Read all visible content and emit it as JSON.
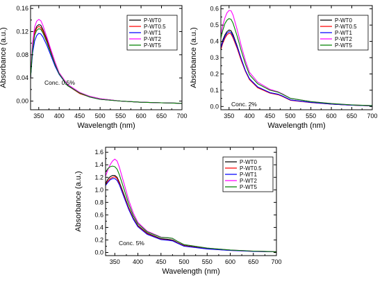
{
  "chart_data": [
    {
      "type": "line",
      "title": "",
      "xlabel": "Wavelength (nm)",
      "ylabel": "Absorbance (a.u.)",
      "xlim": [
        330,
        700
      ],
      "ylim": [
        -0.015,
        0.165
      ],
      "xticks": [
        350,
        400,
        450,
        500,
        550,
        600,
        650,
        700
      ],
      "yticks": [
        0.0,
        0.04,
        0.08,
        0.12,
        0.16
      ],
      "yticklabels": [
        "0.00",
        "0.04",
        "0.08",
        "0.12",
        "0.16"
      ],
      "annotation": "Conc. 0.5%",
      "legend_position": "top-right",
      "grid": false,
      "series": [
        {
          "name": "P-WT0",
          "color": "#000000",
          "x": [
            330,
            335,
            340,
            345,
            350,
            355,
            360,
            370,
            380,
            390,
            400,
            420,
            450,
            475,
            500,
            550,
            600,
            650,
            700
          ],
          "y": [
            0.04,
            0.095,
            0.12,
            0.129,
            0.132,
            0.131,
            0.124,
            0.106,
            0.085,
            0.065,
            0.048,
            0.028,
            0.014,
            0.008,
            0.004,
            0.0,
            -0.002,
            -0.003,
            -0.004
          ]
        },
        {
          "name": "P-WT0.5",
          "color": "#ff0000",
          "x": [
            330,
            335,
            340,
            345,
            350,
            355,
            360,
            370,
            380,
            390,
            400,
            420,
            450,
            475,
            500,
            550,
            600,
            650,
            700
          ],
          "y": [
            0.04,
            0.093,
            0.118,
            0.126,
            0.129,
            0.127,
            0.121,
            0.103,
            0.083,
            0.064,
            0.047,
            0.027,
            0.013,
            0.007,
            0.003,
            0.0,
            -0.002,
            -0.003,
            -0.004
          ]
        },
        {
          "name": "P-WT1",
          "color": "#0000ff",
          "x": [
            330,
            335,
            340,
            345,
            350,
            355,
            360,
            370,
            380,
            390,
            400,
            420,
            450,
            475,
            500,
            550,
            600,
            650,
            700
          ],
          "y": [
            0.04,
            0.083,
            0.104,
            0.113,
            0.117,
            0.116,
            0.111,
            0.096,
            0.078,
            0.06,
            0.046,
            0.027,
            0.014,
            0.007,
            0.003,
            0.0,
            -0.002,
            -0.003,
            -0.004
          ]
        },
        {
          "name": "P-WT2",
          "color": "#ff00ff",
          "x": [
            330,
            335,
            340,
            345,
            350,
            355,
            360,
            370,
            380,
            390,
            400,
            420,
            450,
            475,
            500,
            550,
            600,
            650,
            700
          ],
          "y": [
            0.042,
            0.1,
            0.128,
            0.138,
            0.141,
            0.139,
            0.131,
            0.11,
            0.088,
            0.067,
            0.049,
            0.029,
            0.015,
            0.008,
            0.004,
            0.0,
            -0.002,
            -0.003,
            -0.004
          ]
        },
        {
          "name": "P-WT5",
          "color": "#008000",
          "x": [
            330,
            335,
            340,
            345,
            350,
            355,
            360,
            370,
            380,
            390,
            400,
            420,
            450,
            475,
            500,
            550,
            600,
            650,
            700
          ],
          "y": [
            0.04,
            0.09,
            0.114,
            0.122,
            0.125,
            0.124,
            0.118,
            0.101,
            0.082,
            0.063,
            0.047,
            0.027,
            0.014,
            0.007,
            0.003,
            0.0,
            -0.002,
            -0.003,
            -0.004
          ]
        }
      ]
    },
    {
      "type": "line",
      "title": "",
      "xlabel": "Wavelength (nm)",
      "ylabel": "Absorbance (a.u.)",
      "xlim": [
        330,
        700
      ],
      "ylim": [
        -0.02,
        0.62
      ],
      "xticks": [
        350,
        400,
        450,
        500,
        550,
        600,
        650,
        700
      ],
      "yticks": [
        0.0,
        0.1,
        0.2,
        0.3,
        0.4,
        0.5,
        0.6
      ],
      "yticklabels": [
        "0.0",
        "0.1",
        "0.2",
        "0.3",
        "0.4",
        "0.5",
        "0.6"
      ],
      "annotation": "Conc. 2%",
      "legend_position": "top-right",
      "grid": false,
      "series": [
        {
          "name": "P-WT0",
          "color": "#000000",
          "x": [
            330,
            335,
            340,
            345,
            350,
            355,
            360,
            370,
            380,
            390,
            400,
            420,
            450,
            470,
            480,
            500,
            550,
            600,
            650,
            700
          ],
          "y": [
            0.36,
            0.41,
            0.44,
            0.46,
            0.47,
            0.465,
            0.44,
            0.37,
            0.29,
            0.22,
            0.17,
            0.12,
            0.085,
            0.075,
            0.065,
            0.04,
            0.025,
            0.015,
            0.008,
            0.004
          ]
        },
        {
          "name": "P-WT0.5",
          "color": "#ff0000",
          "x": [
            330,
            335,
            340,
            345,
            350,
            355,
            360,
            370,
            380,
            390,
            400,
            420,
            450,
            470,
            480,
            500,
            550,
            600,
            650,
            700
          ],
          "y": [
            0.35,
            0.39,
            0.42,
            0.44,
            0.45,
            0.445,
            0.42,
            0.355,
            0.28,
            0.215,
            0.165,
            0.115,
            0.082,
            0.072,
            0.062,
            0.038,
            0.024,
            0.014,
            0.008,
            0.004
          ]
        },
        {
          "name": "P-WT1",
          "color": "#0000ff",
          "x": [
            330,
            335,
            340,
            345,
            350,
            355,
            360,
            370,
            380,
            390,
            400,
            420,
            450,
            470,
            480,
            500,
            550,
            600,
            650,
            700
          ],
          "y": [
            0.36,
            0.4,
            0.43,
            0.45,
            0.46,
            0.455,
            0.43,
            0.365,
            0.29,
            0.22,
            0.17,
            0.12,
            0.085,
            0.075,
            0.065,
            0.04,
            0.025,
            0.015,
            0.008,
            0.004
          ]
        },
        {
          "name": "P-WT2",
          "color": "#ff00ff",
          "x": [
            330,
            335,
            340,
            345,
            350,
            355,
            360,
            370,
            380,
            390,
            400,
            420,
            450,
            470,
            480,
            500,
            550,
            600,
            650,
            700
          ],
          "y": [
            0.44,
            0.5,
            0.545,
            0.575,
            0.59,
            0.588,
            0.56,
            0.47,
            0.37,
            0.28,
            0.21,
            0.15,
            0.105,
            0.09,
            0.078,
            0.05,
            0.03,
            0.018,
            0.01,
            0.005
          ]
        },
        {
          "name": "P-WT5",
          "color": "#008000",
          "x": [
            330,
            335,
            340,
            345,
            350,
            355,
            360,
            370,
            380,
            390,
            400,
            420,
            450,
            470,
            480,
            500,
            550,
            600,
            650,
            700
          ],
          "y": [
            0.42,
            0.47,
            0.51,
            0.53,
            0.54,
            0.535,
            0.51,
            0.43,
            0.34,
            0.26,
            0.195,
            0.14,
            0.1,
            0.088,
            0.076,
            0.05,
            0.03,
            0.018,
            0.01,
            0.005
          ]
        }
      ]
    },
    {
      "type": "line",
      "title": "",
      "xlabel": "Wavelength (nm)",
      "ylabel": "Absorbance (a.u.)",
      "xlim": [
        330,
        700
      ],
      "ylim": [
        -0.05,
        1.68
      ],
      "xticks": [
        350,
        400,
        450,
        500,
        550,
        600,
        650,
        700
      ],
      "yticks": [
        0.0,
        0.2,
        0.4,
        0.6,
        0.8,
        1.0,
        1.2,
        1.4,
        1.6
      ],
      "yticklabels": [
        "0.0",
        "0.2",
        "0.4",
        "0.6",
        "0.8",
        "1.0",
        "1.2",
        "1.4",
        "1.6"
      ],
      "annotation": "Conc. 5%",
      "legend_position": "top-right",
      "grid": false,
      "series": [
        {
          "name": "P-WT0",
          "color": "#000000",
          "x": [
            330,
            335,
            340,
            345,
            350,
            355,
            360,
            370,
            380,
            390,
            400,
            420,
            450,
            465,
            475,
            485,
            500,
            550,
            600,
            650,
            700
          ],
          "y": [
            1.1,
            1.17,
            1.21,
            1.23,
            1.23,
            1.2,
            1.12,
            0.92,
            0.72,
            0.55,
            0.43,
            0.31,
            0.22,
            0.21,
            0.2,
            0.16,
            0.11,
            0.06,
            0.035,
            0.02,
            0.01
          ]
        },
        {
          "name": "P-WT0.5",
          "color": "#ff0000",
          "x": [
            330,
            335,
            340,
            345,
            350,
            355,
            360,
            370,
            380,
            390,
            400,
            420,
            450,
            465,
            475,
            485,
            500,
            550,
            600,
            650,
            700
          ],
          "y": [
            1.08,
            1.14,
            1.18,
            1.2,
            1.21,
            1.18,
            1.1,
            0.9,
            0.71,
            0.54,
            0.42,
            0.3,
            0.21,
            0.2,
            0.19,
            0.155,
            0.105,
            0.058,
            0.033,
            0.019,
            0.01
          ]
        },
        {
          "name": "P-WT1",
          "color": "#0000ff",
          "x": [
            330,
            335,
            340,
            345,
            350,
            355,
            360,
            370,
            380,
            390,
            400,
            420,
            450,
            465,
            475,
            485,
            500,
            550,
            600,
            650,
            700
          ],
          "y": [
            1.07,
            1.12,
            1.16,
            1.18,
            1.18,
            1.15,
            1.08,
            0.88,
            0.69,
            0.53,
            0.41,
            0.29,
            0.205,
            0.195,
            0.185,
            0.15,
            0.1,
            0.056,
            0.032,
            0.018,
            0.01
          ]
        },
        {
          "name": "P-WT2",
          "color": "#ff00ff",
          "x": [
            330,
            335,
            340,
            345,
            350,
            355,
            360,
            370,
            380,
            390,
            400,
            420,
            450,
            465,
            475,
            485,
            500,
            550,
            600,
            650,
            700
          ],
          "y": [
            1.22,
            1.32,
            1.4,
            1.46,
            1.49,
            1.46,
            1.36,
            1.1,
            0.84,
            0.63,
            0.48,
            0.34,
            0.245,
            0.235,
            0.225,
            0.18,
            0.125,
            0.07,
            0.04,
            0.022,
            0.012
          ]
        },
        {
          "name": "P-WT5",
          "color": "#008000",
          "x": [
            330,
            335,
            340,
            345,
            350,
            355,
            360,
            370,
            380,
            390,
            400,
            420,
            450,
            465,
            475,
            485,
            500,
            550,
            600,
            650,
            700
          ],
          "y": [
            1.28,
            1.34,
            1.37,
            1.38,
            1.37,
            1.33,
            1.24,
            1.01,
            0.78,
            0.59,
            0.46,
            0.33,
            0.24,
            0.235,
            0.225,
            0.18,
            0.125,
            0.07,
            0.04,
            0.022,
            0.012
          ]
        }
      ]
    }
  ]
}
